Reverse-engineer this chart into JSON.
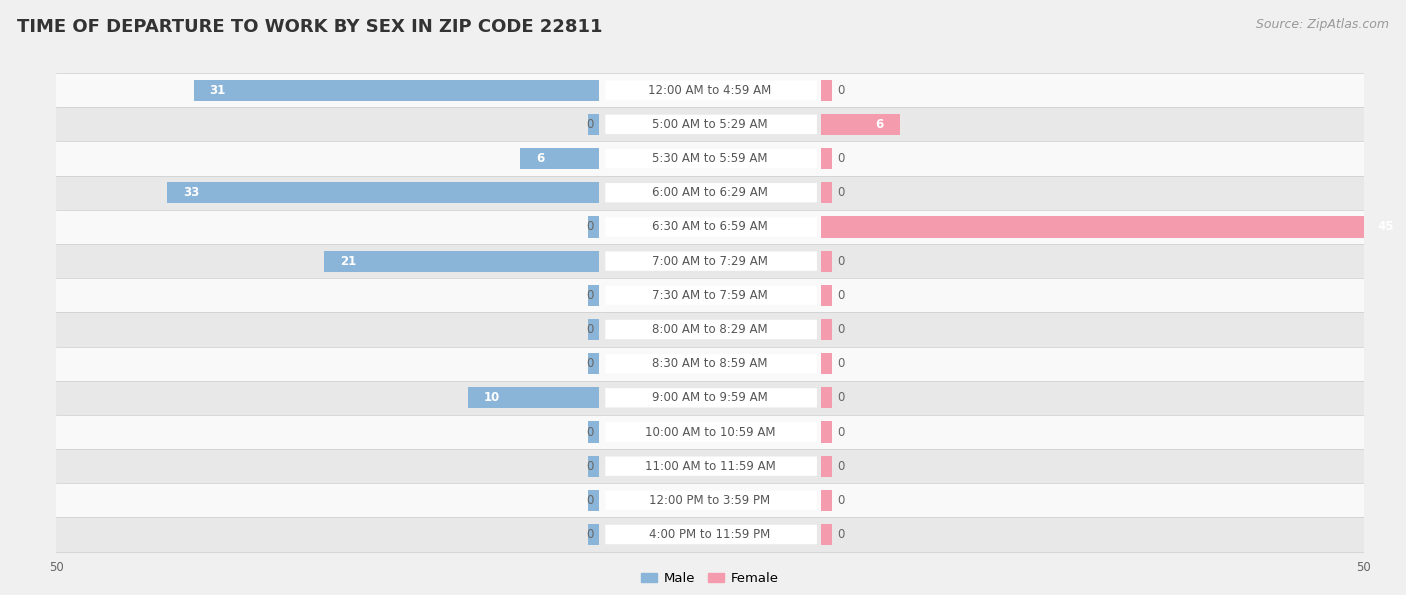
{
  "title": "TIME OF DEPARTURE TO WORK BY SEX IN ZIP CODE 22811",
  "source": "Source: ZipAtlas.com",
  "categories": [
    "12:00 AM to 4:59 AM",
    "5:00 AM to 5:29 AM",
    "5:30 AM to 5:59 AM",
    "6:00 AM to 6:29 AM",
    "6:30 AM to 6:59 AM",
    "7:00 AM to 7:29 AM",
    "7:30 AM to 7:59 AM",
    "8:00 AM to 8:29 AM",
    "8:30 AM to 8:59 AM",
    "9:00 AM to 9:59 AM",
    "10:00 AM to 10:59 AM",
    "11:00 AM to 11:59 AM",
    "12:00 PM to 3:59 PM",
    "4:00 PM to 11:59 PM"
  ],
  "male_values": [
    31,
    0,
    6,
    33,
    0,
    21,
    0,
    0,
    0,
    10,
    0,
    0,
    0,
    0
  ],
  "female_values": [
    0,
    6,
    0,
    0,
    45,
    0,
    0,
    0,
    0,
    0,
    0,
    0,
    0,
    0
  ],
  "male_color": "#8ab4d8",
  "female_color": "#f49bae",
  "male_label": "Male",
  "female_label": "Female",
  "axis_max": 50,
  "bg_color": "#f0f0f0",
  "row_bg_even": "#f9f9f9",
  "row_bg_odd": "#e8e8e8",
  "title_fontsize": 13,
  "source_fontsize": 9,
  "label_fontsize": 8.5,
  "cat_label_fontsize": 8.5,
  "value_label_fontsize": 8.5
}
